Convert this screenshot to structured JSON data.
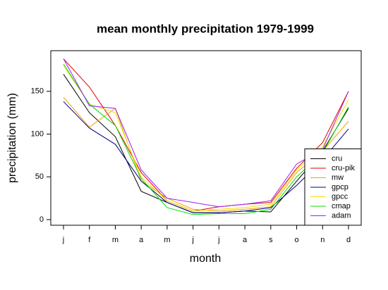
{
  "chart_data": {
    "type": "line",
    "title": "mean monthly precipitation 1979-1999",
    "x_label": "month",
    "y_label": "precipitation (mm)",
    "categories": [
      "j",
      "f",
      "m",
      "a",
      "m",
      "j",
      "j",
      "a",
      "s",
      "o",
      "n",
      "d"
    ],
    "ylim": [
      -6.6,
      197.5
    ],
    "yticks": [
      0,
      50,
      100,
      150
    ],
    "legend": "bottom-right",
    "series": [
      {
        "name": "cru",
        "color": "#000000",
        "values": [
          170,
          125,
          97,
          33,
          20,
          8,
          8,
          10,
          9,
          45,
          80,
          130
        ]
      },
      {
        "name": "cru-pik",
        "color": "#e00000",
        "values": [
          188,
          155,
          110,
          55,
          22,
          10,
          15,
          18,
          20,
          60,
          90,
          150
        ]
      },
      {
        "name": "mw",
        "color": "#f0a000",
        "values": [
          143,
          108,
          130,
          45,
          25,
          12,
          10,
          12,
          15,
          55,
          80,
          115
        ]
      },
      {
        "name": "gpcp",
        "color": "#000080",
        "values": [
          138,
          107,
          88,
          45,
          20,
          8,
          8,
          10,
          14,
          40,
          70,
          106
        ]
      },
      {
        "name": "gpcc",
        "color": "#f0e000",
        "values": [
          180,
          135,
          125,
          50,
          22,
          10,
          12,
          14,
          18,
          58,
          85,
          140
        ]
      },
      {
        "name": "cmap",
        "color": "#00e000",
        "values": [
          182,
          135,
          110,
          48,
          14,
          6,
          7,
          7,
          12,
          50,
          78,
          132
        ]
      },
      {
        "name": "adam",
        "color": "#a020f0",
        "values": [
          188,
          133,
          130,
          58,
          25,
          20,
          15,
          18,
          22,
          65,
          82,
          150
        ]
      }
    ]
  }
}
